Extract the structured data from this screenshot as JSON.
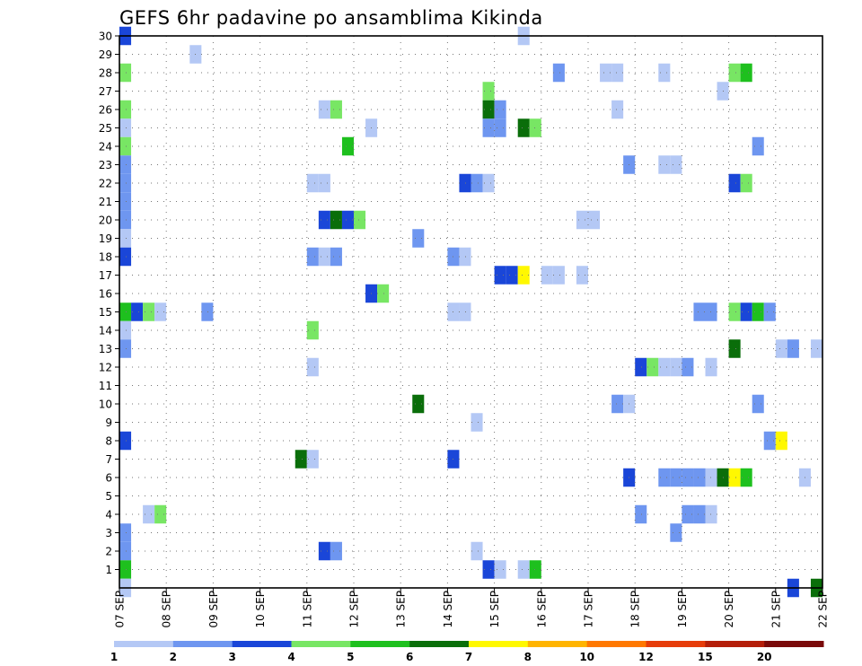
{
  "chart_data": {
    "type": "heatmap",
    "title": "GEFS 6hr padavine po ansamblima Kikinda",
    "xlabel": "",
    "ylabel": "",
    "x_tick_labels": [
      "07 SEP",
      "08 SEP",
      "09 SEP",
      "10 SEP",
      "11 SEP",
      "12 SEP",
      "13 SEP",
      "14 SEP",
      "15 SEP",
      "16 SEP",
      "17 SEP",
      "18 SEP",
      "19 SEP",
      "20 SEP",
      "21 SEP",
      "22 SEP"
    ],
    "y_tick_labels": [
      "1",
      "2",
      "3",
      "4",
      "5",
      "6",
      "7",
      "8",
      "9",
      "10",
      "11",
      "12",
      "13",
      "14",
      "15",
      "16",
      "17",
      "18",
      "19",
      "20",
      "21",
      "22",
      "23",
      "24",
      "25",
      "26",
      "27",
      "28",
      "29",
      "30"
    ],
    "x_range_days": [
      0,
      15
    ],
    "y_range": [
      0,
      30
    ],
    "grid": true,
    "colorbar": {
      "thresholds": [
        "1",
        "2",
        "3",
        "4",
        "5",
        "6",
        "7",
        "8",
        "10",
        "12",
        "15",
        "20"
      ],
      "colors": [
        "#b4c8f5",
        "#6e96f0",
        "#1a46d8",
        "#78e664",
        "#1ec01e",
        "#0a6e0a",
        "#fff800",
        "#ffb400",
        "#ff7800",
        "#e63c0a",
        "#b41e0a",
        "#7a0a0a"
      ]
    },
    "cells": [
      {
        "m": 30,
        "d": 0.125,
        "c": 2
      },
      {
        "m": 30,
        "d": 8.625,
        "c": 0
      },
      {
        "m": 29,
        "d": 1.625,
        "c": 0
      },
      {
        "m": 28,
        "d": 0.125,
        "c": 3
      },
      {
        "m": 28,
        "d": 9.375,
        "c": 1
      },
      {
        "m": 28,
        "d": 10.375,
        "c": 0
      },
      {
        "m": 28,
        "d": 10.625,
        "c": 0
      },
      {
        "m": 28,
        "d": 11.625,
        "c": 0
      },
      {
        "m": 28,
        "d": 13.125,
        "c": 3
      },
      {
        "m": 28,
        "d": 13.375,
        "c": 4
      },
      {
        "m": 27,
        "d": 7.875,
        "c": 3
      },
      {
        "m": 27,
        "d": 12.875,
        "c": 0
      },
      {
        "m": 26,
        "d": 0.125,
        "c": 3
      },
      {
        "m": 26,
        "d": 4.375,
        "c": 0
      },
      {
        "m": 26,
        "d": 4.625,
        "c": 3
      },
      {
        "m": 26,
        "d": 7.875,
        "c": 5
      },
      {
        "m": 26,
        "d": 8.125,
        "c": 1
      },
      {
        "m": 26,
        "d": 10.625,
        "c": 0
      },
      {
        "m": 25,
        "d": 0.125,
        "c": 0
      },
      {
        "m": 25,
        "d": 5.375,
        "c": 0
      },
      {
        "m": 25,
        "d": 7.875,
        "c": 1
      },
      {
        "m": 25,
        "d": 8.125,
        "c": 1
      },
      {
        "m": 25,
        "d": 8.625,
        "c": 5
      },
      {
        "m": 25,
        "d": 8.875,
        "c": 3
      },
      {
        "m": 24,
        "d": 0.125,
        "c": 3
      },
      {
        "m": 24,
        "d": 4.875,
        "c": 4
      },
      {
        "m": 24,
        "d": 13.625,
        "c": 1
      },
      {
        "m": 23,
        "d": 0.125,
        "c": 1
      },
      {
        "m": 23,
        "d": 10.875,
        "c": 1
      },
      {
        "m": 23,
        "d": 11.625,
        "c": 0
      },
      {
        "m": 23,
        "d": 11.875,
        "c": 0
      },
      {
        "m": 22,
        "d": 0.125,
        "c": 1
      },
      {
        "m": 22,
        "d": 4.125,
        "c": 0
      },
      {
        "m": 22,
        "d": 4.375,
        "c": 0
      },
      {
        "m": 22,
        "d": 7.375,
        "c": 2
      },
      {
        "m": 22,
        "d": 7.625,
        "c": 1
      },
      {
        "m": 22,
        "d": 7.875,
        "c": 0
      },
      {
        "m": 22,
        "d": 13.125,
        "c": 2
      },
      {
        "m": 22,
        "d": 13.375,
        "c": 3
      },
      {
        "m": 21,
        "d": 0.125,
        "c": 1
      },
      {
        "m": 20,
        "d": 0.125,
        "c": 1
      },
      {
        "m": 20,
        "d": 4.375,
        "c": 2
      },
      {
        "m": 20,
        "d": 4.625,
        "c": 5
      },
      {
        "m": 20,
        "d": 4.875,
        "c": 2
      },
      {
        "m": 20,
        "d": 5.125,
        "c": 3
      },
      {
        "m": 20,
        "d": 9.875,
        "c": 0
      },
      {
        "m": 20,
        "d": 10.125,
        "c": 0
      },
      {
        "m": 19,
        "d": 0.125,
        "c": 0
      },
      {
        "m": 19,
        "d": 6.375,
        "c": 1
      },
      {
        "m": 18,
        "d": 0.125,
        "c": 2
      },
      {
        "m": 18,
        "d": 4.125,
        "c": 1
      },
      {
        "m": 18,
        "d": 4.375,
        "c": 0
      },
      {
        "m": 18,
        "d": 4.625,
        "c": 1
      },
      {
        "m": 18,
        "d": 7.125,
        "c": 1
      },
      {
        "m": 18,
        "d": 7.375,
        "c": 0
      },
      {
        "m": 17,
        "d": 8.125,
        "c": 2
      },
      {
        "m": 17,
        "d": 8.375,
        "c": 2
      },
      {
        "m": 17,
        "d": 8.625,
        "c": 6
      },
      {
        "m": 17,
        "d": 9.125,
        "c": 0
      },
      {
        "m": 17,
        "d": 9.375,
        "c": 0
      },
      {
        "m": 17,
        "d": 9.875,
        "c": 0
      },
      {
        "m": 16,
        "d": 5.375,
        "c": 2
      },
      {
        "m": 16,
        "d": 5.625,
        "c": 3
      },
      {
        "m": 15,
        "d": 0.125,
        "c": 4
      },
      {
        "m": 15,
        "d": 0.375,
        "c": 2
      },
      {
        "m": 15,
        "d": 0.625,
        "c": 3
      },
      {
        "m": 15,
        "d": 0.875,
        "c": 0
      },
      {
        "m": 15,
        "d": 1.875,
        "c": 1
      },
      {
        "m": 15,
        "d": 7.125,
        "c": 0
      },
      {
        "m": 15,
        "d": 7.375,
        "c": 0
      },
      {
        "m": 15,
        "d": 12.375,
        "c": 1
      },
      {
        "m": 15,
        "d": 12.625,
        "c": 1
      },
      {
        "m": 15,
        "d": 13.125,
        "c": 3
      },
      {
        "m": 15,
        "d": 13.375,
        "c": 2
      },
      {
        "m": 15,
        "d": 13.625,
        "c": 4
      },
      {
        "m": 15,
        "d": 13.875,
        "c": 1
      },
      {
        "m": 14,
        "d": 0.125,
        "c": 0
      },
      {
        "m": 14,
        "d": 4.125,
        "c": 3
      },
      {
        "m": 13,
        "d": 0.125,
        "c": 1
      },
      {
        "m": 13,
        "d": 13.125,
        "c": 5
      },
      {
        "m": 13,
        "d": 14.125,
        "c": 0
      },
      {
        "m": 13,
        "d": 14.375,
        "c": 1
      },
      {
        "m": 13,
        "d": 14.875,
        "c": 0
      },
      {
        "m": 12,
        "d": 4.125,
        "c": 0
      },
      {
        "m": 12,
        "d": 11.125,
        "c": 2
      },
      {
        "m": 12,
        "d": 11.375,
        "c": 3
      },
      {
        "m": 12,
        "d": 11.625,
        "c": 0
      },
      {
        "m": 12,
        "d": 11.875,
        "c": 0
      },
      {
        "m": 12,
        "d": 12.125,
        "c": 1
      },
      {
        "m": 12,
        "d": 12.625,
        "c": 0
      },
      {
        "m": 10,
        "d": 6.375,
        "c": 5
      },
      {
        "m": 10,
        "d": 10.625,
        "c": 1
      },
      {
        "m": 10,
        "d": 10.875,
        "c": 0
      },
      {
        "m": 10,
        "d": 13.625,
        "c": 1
      },
      {
        "m": 9,
        "d": 7.625,
        "c": 0
      },
      {
        "m": 8,
        "d": 0.125,
        "c": 2
      },
      {
        "m": 8,
        "d": 13.875,
        "c": 1
      },
      {
        "m": 8,
        "d": 14.125,
        "c": 6
      },
      {
        "m": 7,
        "d": 3.875,
        "c": 5
      },
      {
        "m": 7,
        "d": 4.125,
        "c": 0
      },
      {
        "m": 7,
        "d": 7.125,
        "c": 2
      },
      {
        "m": 6,
        "d": 10.875,
        "c": 2
      },
      {
        "m": 6,
        "d": 11.625,
        "c": 1
      },
      {
        "m": 6,
        "d": 11.875,
        "c": 1
      },
      {
        "m": 6,
        "d": 12.125,
        "c": 1
      },
      {
        "m": 6,
        "d": 12.375,
        "c": 1
      },
      {
        "m": 6,
        "d": 12.625,
        "c": 0
      },
      {
        "m": 6,
        "d": 12.875,
        "c": 5
      },
      {
        "m": 6,
        "d": 13.125,
        "c": 6
      },
      {
        "m": 6,
        "d": 13.375,
        "c": 4
      },
      {
        "m": 6,
        "d": 14.625,
        "c": 0
      },
      {
        "m": 4,
        "d": 0.625,
        "c": 0
      },
      {
        "m": 4,
        "d": 0.875,
        "c": 3
      },
      {
        "m": 4,
        "d": 11.125,
        "c": 1
      },
      {
        "m": 4,
        "d": 12.125,
        "c": 1
      },
      {
        "m": 4,
        "d": 12.375,
        "c": 1
      },
      {
        "m": 4,
        "d": 12.625,
        "c": 0
      },
      {
        "m": 3,
        "d": 0.125,
        "c": 1
      },
      {
        "m": 3,
        "d": 11.875,
        "c": 1
      },
      {
        "m": 2,
        "d": 0.125,
        "c": 1
      },
      {
        "m": 2,
        "d": 4.375,
        "c": 2
      },
      {
        "m": 2,
        "d": 4.625,
        "c": 1
      },
      {
        "m": 2,
        "d": 7.625,
        "c": 0
      },
      {
        "m": 1,
        "d": 0.125,
        "c": 4
      },
      {
        "m": 1,
        "d": 7.875,
        "c": 2
      },
      {
        "m": 1,
        "d": 8.125,
        "c": 0
      },
      {
        "m": 1,
        "d": 8.625,
        "c": 0
      },
      {
        "m": 1,
        "d": 8.875,
        "c": 4
      },
      {
        "m": 0,
        "d": 0.125,
        "c": 0
      },
      {
        "m": 0,
        "d": 14.375,
        "c": 2
      },
      {
        "m": 0,
        "d": 14.875,
        "c": 5
      }
    ]
  }
}
